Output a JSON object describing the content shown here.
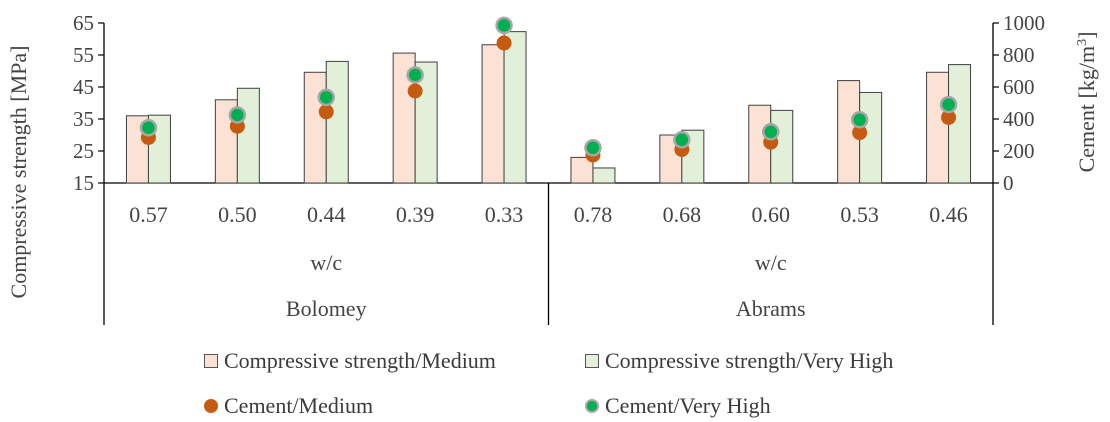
{
  "chart_data": {
    "type": "bar",
    "categories": [
      "0.57",
      "0.50",
      "0.44",
      "0.39",
      "0.33",
      "0.78",
      "0.68",
      "0.60",
      "0.53",
      "0.46"
    ],
    "category_axis_label": "w/c",
    "groups": [
      {
        "label": "Bolomey",
        "count": 5
      },
      {
        "label": "Abrams",
        "count": 5
      }
    ],
    "series": [
      {
        "name": "Compressive strength/Medium",
        "kind": "bar",
        "axis": "left",
        "values": [
          36.0,
          41.0,
          49.6,
          55.6,
          58.2,
          23.0,
          30.0,
          39.3,
          47.0,
          49.6
        ]
      },
      {
        "name": "Compressive strength/Very High",
        "kind": "bar",
        "axis": "left",
        "values": [
          36.2,
          44.6,
          53.0,
          52.8,
          62.3,
          19.7,
          31.5,
          37.7,
          43.3,
          52.0
        ]
      },
      {
        "name": "Cement/Medium",
        "kind": "marker",
        "axis": "right",
        "values": [
          285,
          355,
          445,
          575,
          875,
          175,
          210,
          255,
          315,
          410
        ]
      },
      {
        "name": "Cement/Very High",
        "kind": "marker",
        "axis": "right",
        "values": [
          345,
          425,
          535,
          675,
          985,
          220,
          270,
          320,
          395,
          490
        ]
      }
    ],
    "ylabel": "Compressive strength [MPa]",
    "ylim": [
      15,
      65
    ],
    "yticks": [
      15,
      25,
      35,
      45,
      55,
      65
    ],
    "y2label_base": "Cement [kg/m",
    "y2label_sup": "3",
    "y2label_end": "]",
    "y2lim": [
      0,
      1000
    ],
    "y2ticks": [
      0,
      200,
      400,
      600,
      800,
      1000
    ],
    "legend_position": "bottom",
    "grid": false
  },
  "colors": {
    "medium_bar_fill": "#fbe2d5",
    "very_high_bar_fill": "#e2f0d9",
    "bar_stroke": "#404040",
    "medium_marker": "#c55a11",
    "very_high_marker": "#00b050",
    "very_high_marker_ring": "#a6a6a6",
    "axis": "#000000",
    "text": "#444444"
  }
}
